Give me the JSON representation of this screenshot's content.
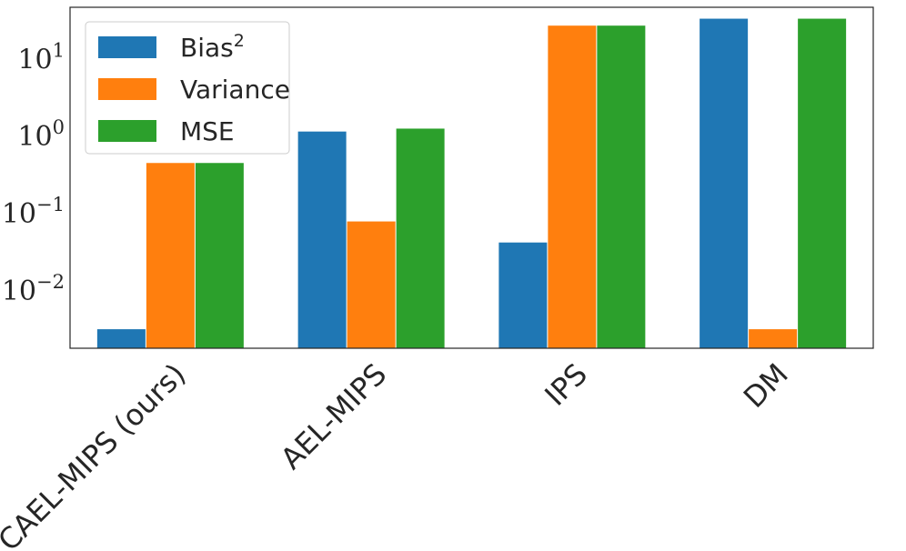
{
  "chart_data": {
    "type": "bar",
    "title": "",
    "xlabel": "",
    "ylabel": "",
    "yscale": "log",
    "ylim": [
      0.0017,
      45
    ],
    "y_ticks": [
      {
        "base": "10",
        "exp": "1",
        "value": 10
      },
      {
        "base": "10",
        "exp": "0",
        "value": 1
      },
      {
        "base": "10",
        "exp": "−1",
        "value": 0.1
      },
      {
        "base": "10",
        "exp": "−2",
        "value": 0.01
      }
    ],
    "categories": [
      "CAEL-MIPS (ours)",
      "AEL-MIPS",
      "IPS",
      "DM"
    ],
    "series": [
      {
        "name": "Bias",
        "name_sup": "2",
        "color": "#1f77b4",
        "values": [
          0.003,
          1.1,
          0.04,
          32
        ]
      },
      {
        "name": "Variance",
        "color": "#ff7f0e",
        "values": [
          0.43,
          0.075,
          26,
          0.003
        ]
      },
      {
        "name": "MSE",
        "color": "#2ca02c",
        "values": [
          0.43,
          1.2,
          26,
          32
        ]
      }
    ],
    "grid": false,
    "legend": "top-left"
  }
}
